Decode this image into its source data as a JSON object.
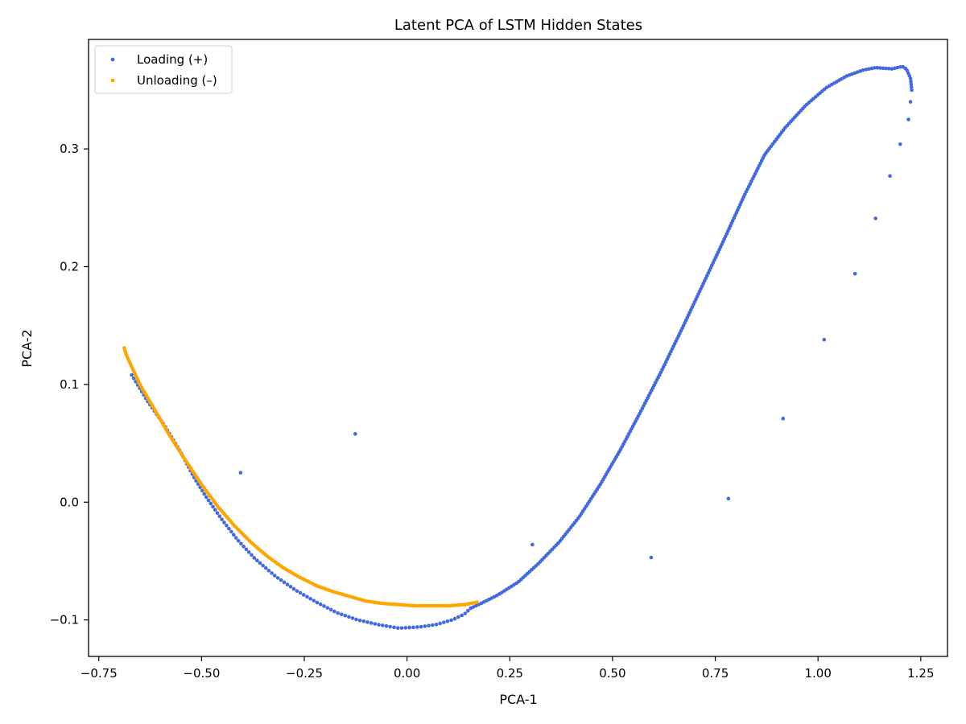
{
  "chart_data": {
    "type": "scatter",
    "title": "Latent PCA of LSTM Hidden States",
    "xlabel": "PCA-1",
    "ylabel": "PCA-2",
    "xlim": [
      -0.775,
      1.315
    ],
    "ylim": [
      -0.131,
      0.393
    ],
    "grid": false,
    "legend_position": "top-left",
    "x_ticks": [
      -0.75,
      -0.5,
      -0.25,
      0.0,
      0.25,
      0.5,
      0.75,
      1.0,
      1.25
    ],
    "x_tick_labels": [
      "−0.75",
      "−0.50",
      "−0.25",
      "0.00",
      "0.25",
      "0.50",
      "0.75",
      "1.00",
      "1.25"
    ],
    "y_ticks": [
      -0.1,
      0.0,
      0.1,
      0.2,
      0.3
    ],
    "y_tick_labels": [
      "−0.1",
      "0.0",
      "0.1",
      "0.2",
      "0.3"
    ],
    "series": [
      {
        "name": "Loading (+)",
        "color": "#4169e1",
        "curves": [
          {
            "points": [
              [
                -0.67,
                0.108
              ],
              [
                -0.63,
                0.085
              ],
              [
                -0.59,
                0.065
              ],
              [
                -0.55,
                0.042
              ],
              [
                -0.52,
                0.022
              ],
              [
                -0.49,
                0.005
              ],
              [
                -0.45,
                -0.015
              ],
              [
                -0.41,
                -0.033
              ],
              [
                -0.37,
                -0.048
              ],
              [
                -0.32,
                -0.063
              ],
              [
                -0.27,
                -0.075
              ],
              [
                -0.22,
                -0.085
              ],
              [
                -0.17,
                -0.094
              ],
              [
                -0.12,
                -0.1
              ],
              [
                -0.07,
                -0.104
              ],
              [
                -0.02,
                -0.107
              ],
              [
                0.03,
                -0.106
              ],
              [
                0.07,
                -0.104
              ],
              [
                0.11,
                -0.1
              ],
              [
                0.14,
                -0.095
              ],
              [
                0.155,
                -0.09
              ]
            ],
            "count": 120
          },
          {
            "points": [
              [
                0.155,
                -0.09
              ],
              [
                0.18,
                -0.086
              ],
              [
                0.22,
                -0.079
              ],
              [
                0.27,
                -0.068
              ],
              [
                0.32,
                -0.052
              ],
              [
                0.37,
                -0.034
              ],
              [
                0.42,
                -0.012
              ],
              [
                0.47,
                0.015
              ],
              [
                0.52,
                0.045
              ],
              [
                0.57,
                0.078
              ],
              [
                0.62,
                0.112
              ],
              [
                0.67,
                0.148
              ],
              [
                0.72,
                0.185
              ],
              [
                0.77,
                0.222
              ],
              [
                0.82,
                0.26
              ],
              [
                0.87,
                0.295
              ],
              [
                0.92,
                0.318
              ],
              [
                0.97,
                0.337
              ],
              [
                1.02,
                0.352
              ],
              [
                1.07,
                0.362
              ],
              [
                1.11,
                0.367
              ],
              [
                1.14,
                0.369
              ],
              [
                1.18,
                0.368
              ],
              [
                1.205,
                0.37
              ],
              [
                1.215,
                0.368
              ],
              [
                1.225,
                0.36
              ],
              [
                1.228,
                0.35
              ]
            ],
            "count": 260
          },
          {
            "points": [
              [
                1.225,
                0.34
              ],
              [
                1.22,
                0.325
              ],
              [
                1.2,
                0.304
              ],
              [
                1.175,
                0.277
              ],
              [
                1.14,
                0.241
              ],
              [
                1.09,
                0.194
              ],
              [
                1.015,
                0.138
              ],
              [
                0.915,
                0.071
              ],
              [
                0.782,
                0.003
              ],
              [
                0.594,
                -0.047
              ],
              [
                0.305,
                -0.036
              ],
              [
                -0.126,
                0.058
              ],
              [
                -0.405,
                0.025
              ]
            ],
            "count": 13
          }
        ]
      },
      {
        "name": "Unloading (–)",
        "color": "#ffa500",
        "curves": [
          {
            "points": [
              [
                0.17,
                -0.085
              ],
              [
                0.14,
                -0.087
              ],
              [
                0.1,
                -0.088
              ],
              [
                0.06,
                -0.088
              ],
              [
                0.02,
                -0.088
              ],
              [
                -0.02,
                -0.087
              ],
              [
                -0.06,
                -0.086
              ],
              [
                -0.1,
                -0.084
              ],
              [
                -0.14,
                -0.08
              ],
              [
                -0.18,
                -0.076
              ],
              [
                -0.22,
                -0.071
              ],
              [
                -0.26,
                -0.064
              ],
              [
                -0.3,
                -0.056
              ],
              [
                -0.34,
                -0.046
              ],
              [
                -0.38,
                -0.034
              ],
              [
                -0.42,
                -0.02
              ],
              [
                -0.46,
                -0.004
              ],
              [
                -0.5,
                0.015
              ],
              [
                -0.54,
                0.036
              ],
              [
                -0.58,
                0.058
              ],
              [
                -0.62,
                0.082
              ],
              [
                -0.65,
                0.1
              ],
              [
                -0.67,
                0.115
              ],
              [
                -0.683,
                0.125
              ],
              [
                -0.688,
                0.131
              ]
            ],
            "count": 200
          }
        ]
      }
    ]
  }
}
